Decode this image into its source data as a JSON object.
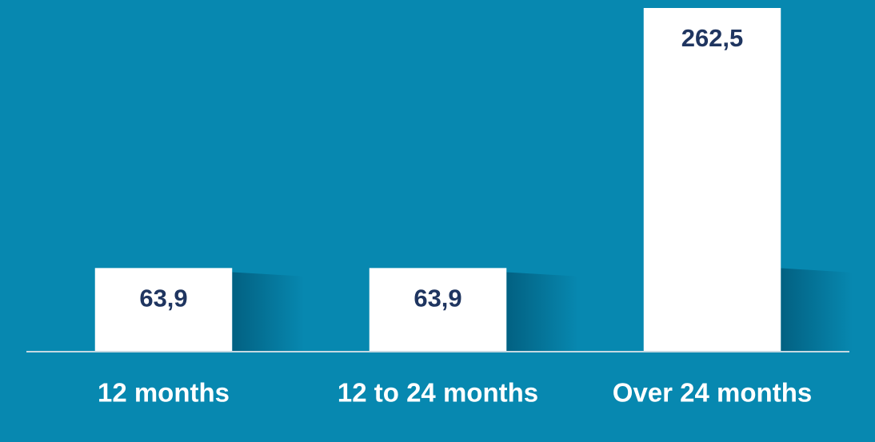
{
  "chart_data": {
    "type": "bar",
    "categories": [
      "12 months",
      "12 to 24 months",
      "Over 24 months"
    ],
    "values": [
      63.9,
      63.9,
      262.5
    ],
    "value_labels": [
      "63,9",
      "63,9",
      "262,5"
    ],
    "color": "#ffffff"
  }
}
